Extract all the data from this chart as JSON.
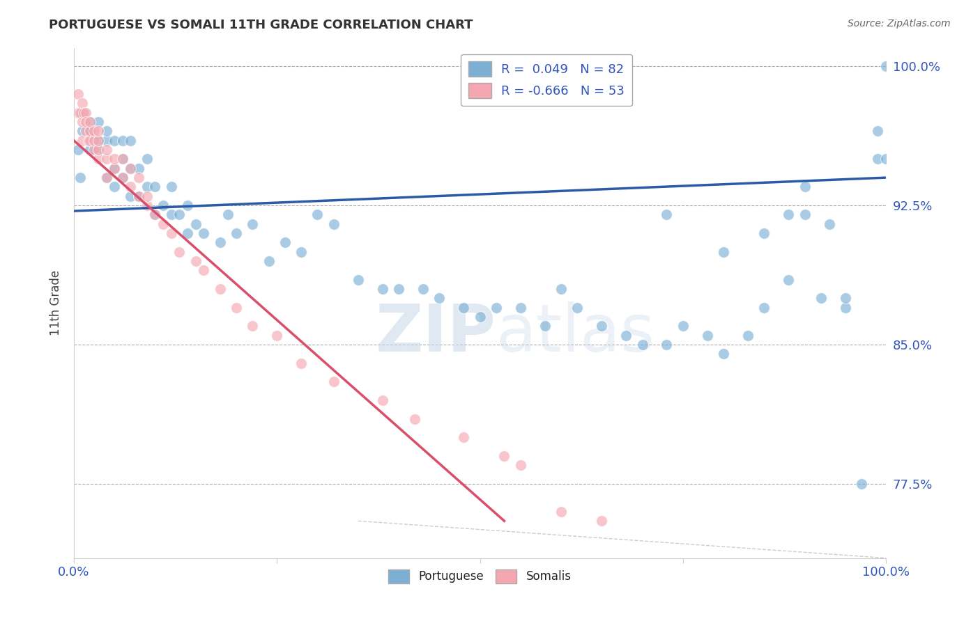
{
  "title": "PORTUGUESE VS SOMALI 11TH GRADE CORRELATION CHART",
  "source_text": "Source: ZipAtlas.com",
  "ylabel": "11th Grade",
  "watermark": "ZIPatlas",
  "xlim": [
    0.0,
    1.0
  ],
  "ylim": [
    0.735,
    1.01
  ],
  "ytick_labels": [
    "77.5%",
    "85.0%",
    "92.5%",
    "100.0%"
  ],
  "ytick_positions": [
    0.775,
    0.85,
    0.925,
    1.0
  ],
  "blue_R": 0.049,
  "blue_N": 82,
  "pink_R": -0.666,
  "pink_N": 53,
  "blue_color": "#7BAFD4",
  "pink_color": "#F4A7B0",
  "blue_line_color": "#2B5BA8",
  "pink_line_color": "#D94F6B",
  "legend_label_blue": "Portuguese",
  "legend_label_pink": "Somalis",
  "blue_line_x0": 0.0,
  "blue_line_y0": 0.922,
  "blue_line_x1": 1.0,
  "blue_line_y1": 0.94,
  "pink_line_x0": 0.0,
  "pink_line_y0": 0.96,
  "pink_line_x1": 0.53,
  "pink_line_y1": 0.755,
  "diag_line_x0": 0.35,
  "diag_line_y0": 0.755,
  "diag_line_x1": 1.0,
  "diag_line_y1": 0.735,
  "blue_points_x": [
    0.005,
    0.008,
    0.01,
    0.01,
    0.02,
    0.02,
    0.02,
    0.03,
    0.03,
    0.03,
    0.04,
    0.04,
    0.04,
    0.05,
    0.05,
    0.05,
    0.06,
    0.06,
    0.06,
    0.07,
    0.07,
    0.07,
    0.08,
    0.08,
    0.09,
    0.09,
    0.1,
    0.1,
    0.11,
    0.12,
    0.12,
    0.13,
    0.14,
    0.14,
    0.15,
    0.16,
    0.18,
    0.19,
    0.2,
    0.22,
    0.24,
    0.26,
    0.28,
    0.3,
    0.32,
    0.35,
    0.38,
    0.4,
    0.43,
    0.45,
    0.48,
    0.5,
    0.52,
    0.55,
    0.58,
    0.6,
    0.62,
    0.65,
    0.68,
    0.7,
    0.73,
    0.75,
    0.78,
    0.8,
    0.83,
    0.85,
    0.88,
    0.9,
    0.92,
    0.95,
    0.97,
    0.99,
    0.99,
    1.0,
    1.0,
    0.73,
    0.8,
    0.85,
    0.88,
    0.9,
    0.93,
    0.95
  ],
  "blue_points_y": [
    0.955,
    0.94,
    0.965,
    0.975,
    0.955,
    0.965,
    0.97,
    0.955,
    0.96,
    0.97,
    0.94,
    0.96,
    0.965,
    0.935,
    0.945,
    0.96,
    0.94,
    0.95,
    0.96,
    0.93,
    0.945,
    0.96,
    0.93,
    0.945,
    0.935,
    0.95,
    0.92,
    0.935,
    0.925,
    0.92,
    0.935,
    0.92,
    0.91,
    0.925,
    0.915,
    0.91,
    0.905,
    0.92,
    0.91,
    0.915,
    0.895,
    0.905,
    0.9,
    0.92,
    0.915,
    0.885,
    0.88,
    0.88,
    0.88,
    0.875,
    0.87,
    0.865,
    0.87,
    0.87,
    0.86,
    0.88,
    0.87,
    0.86,
    0.855,
    0.85,
    0.85,
    0.86,
    0.855,
    0.845,
    0.855,
    0.87,
    0.885,
    0.92,
    0.875,
    0.87,
    0.775,
    0.95,
    0.965,
    0.95,
    1.0,
    0.92,
    0.9,
    0.91,
    0.92,
    0.935,
    0.915,
    0.875
  ],
  "pink_points_x": [
    0.005,
    0.005,
    0.008,
    0.01,
    0.01,
    0.01,
    0.012,
    0.015,
    0.015,
    0.015,
    0.018,
    0.02,
    0.02,
    0.02,
    0.025,
    0.025,
    0.025,
    0.03,
    0.03,
    0.03,
    0.03,
    0.04,
    0.04,
    0.04,
    0.05,
    0.05,
    0.06,
    0.06,
    0.07,
    0.07,
    0.08,
    0.08,
    0.09,
    0.09,
    0.1,
    0.11,
    0.12,
    0.13,
    0.15,
    0.16,
    0.18,
    0.2,
    0.22,
    0.25,
    0.28,
    0.32,
    0.38,
    0.42,
    0.48,
    0.53,
    0.55,
    0.6,
    0.65
  ],
  "pink_points_y": [
    0.975,
    0.985,
    0.975,
    0.98,
    0.97,
    0.96,
    0.975,
    0.965,
    0.975,
    0.97,
    0.96,
    0.96,
    0.965,
    0.97,
    0.955,
    0.96,
    0.965,
    0.95,
    0.955,
    0.96,
    0.965,
    0.94,
    0.95,
    0.955,
    0.945,
    0.95,
    0.94,
    0.95,
    0.935,
    0.945,
    0.93,
    0.94,
    0.925,
    0.93,
    0.92,
    0.915,
    0.91,
    0.9,
    0.895,
    0.89,
    0.88,
    0.87,
    0.86,
    0.855,
    0.84,
    0.83,
    0.82,
    0.81,
    0.8,
    0.79,
    0.785,
    0.76,
    0.755
  ]
}
